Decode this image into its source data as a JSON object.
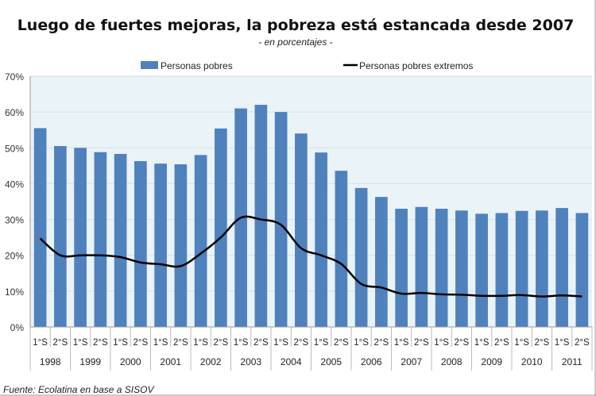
{
  "chart_data": {
    "type": "bar",
    "title": "Luego de fuertes mejoras, la pobreza está estancada desde 2007",
    "subtitle": "- en porcentajes -",
    "source": "Fuente: Ecolatina en base a SISOV",
    "ylim": [
      0,
      70
    ],
    "yticks": [
      "0%",
      "10%",
      "20%",
      "30%",
      "40%",
      "50%",
      "60%",
      "70%"
    ],
    "grid": true,
    "legend_position": "top",
    "semesters": [
      "1°S",
      "2°S"
    ],
    "years": [
      "1998",
      "1999",
      "2000",
      "2001",
      "2002",
      "2003",
      "2004",
      "2005",
      "2006",
      "2007",
      "2008",
      "2009",
      "2010",
      "2011"
    ],
    "series": [
      {
        "name": "Personas pobres",
        "type": "bar",
        "color": "#4f81bd",
        "values": [
          55.5,
          50.5,
          50,
          48.8,
          48.3,
          46.3,
          45.6,
          45.4,
          48,
          55.4,
          61,
          62,
          60,
          54,
          48.7,
          43.6,
          38.8,
          36.3,
          33,
          33.5,
          33,
          32.5,
          31.6,
          31.8,
          32.4,
          32.5,
          33.2,
          31.8
        ]
      },
      {
        "name": "Personas pobres extremos",
        "type": "line",
        "color": "#000000",
        "values": [
          24.7,
          20,
          20,
          20,
          19.5,
          18,
          17.5,
          17,
          20.5,
          25,
          30.5,
          30,
          28.5,
          22,
          20,
          17.6,
          12,
          11,
          9.3,
          9.5,
          9.1,
          9,
          8.7,
          8.7,
          8.9,
          8.5,
          8.8,
          8.5
        ]
      }
    ],
    "plot_background": "#eaf3f8"
  }
}
